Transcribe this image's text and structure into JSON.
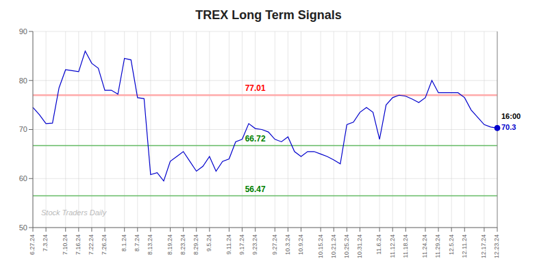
{
  "chart_data": {
    "type": "line",
    "title": "TREX Long Term Signals",
    "categories": [
      "6.27.24",
      null,
      "7.3.24",
      null,
      null,
      "7.10.24",
      null,
      "7.16.24",
      null,
      "7.22.24",
      null,
      "7.26.24",
      null,
      null,
      "8.1.24",
      null,
      "8.7.24",
      null,
      "8.13.24",
      null,
      null,
      "8.19.24",
      null,
      "8.23.24",
      null,
      "8.29.24",
      null,
      "9.5.24",
      null,
      null,
      "9.11.24",
      null,
      "9.17.24",
      null,
      "9.23.24",
      null,
      null,
      "9.27.24",
      null,
      "10.3.24",
      null,
      "10.9.24",
      null,
      null,
      "10.15.24",
      null,
      "10.21.24",
      null,
      "10.25.24",
      null,
      "10.31.24",
      null,
      null,
      "11.6.24",
      null,
      "11.12.24",
      null,
      "11.18.24",
      null,
      null,
      "11.24.24",
      null,
      "11.29.24",
      null,
      "12.5.24",
      null,
      "12.11.24",
      null,
      null,
      "12.17.24",
      null,
      "12.23.24"
    ],
    "values": [
      74.5,
      73.0,
      71.2,
      71.3,
      78.5,
      82.2,
      82.0,
      81.8,
      86.0,
      83.5,
      82.5,
      78.0,
      78.0,
      77.2,
      84.5,
      84.2,
      76.5,
      76.3,
      60.8,
      61.2,
      59.5,
      63.5,
      64.5,
      65.5,
      63.5,
      61.5,
      62.5,
      64.5,
      61.5,
      63.5,
      64.0,
      67.5,
      68.0,
      71.2,
      70.2,
      70.0,
      69.5,
      68.0,
      67.5,
      68.5,
      65.5,
      64.5,
      65.5,
      65.5,
      65.0,
      64.5,
      63.8,
      63.0,
      71.0,
      71.5,
      73.5,
      74.5,
      73.5,
      68.0,
      75.0,
      76.5,
      77.0,
      76.8,
      76.2,
      75.5,
      76.5,
      80.0,
      77.5,
      77.5,
      77.5,
      77.5,
      76.5,
      74.0,
      72.5,
      71.0,
      70.5,
      70.3
    ],
    "color": "#0000cc",
    "ylim": [
      50,
      90
    ],
    "yticks": [
      50,
      60,
      70,
      80,
      90
    ],
    "grid": true,
    "hlines": [
      {
        "value": 77.01,
        "label": "77.01",
        "color": "#ffaaaa",
        "label_color": "red"
      },
      {
        "value": 66.72,
        "label": "66.72",
        "color": "#66bb66",
        "label_color": "green"
      },
      {
        "value": 56.47,
        "label": "56.47",
        "color": "#66bb66",
        "label_color": "green"
      }
    ],
    "annotations": [
      {
        "text": "16:00",
        "color": "#000000"
      },
      {
        "text": "70.3",
        "color": "#0000cc"
      }
    ],
    "watermark": "Stock Traders Daily"
  }
}
